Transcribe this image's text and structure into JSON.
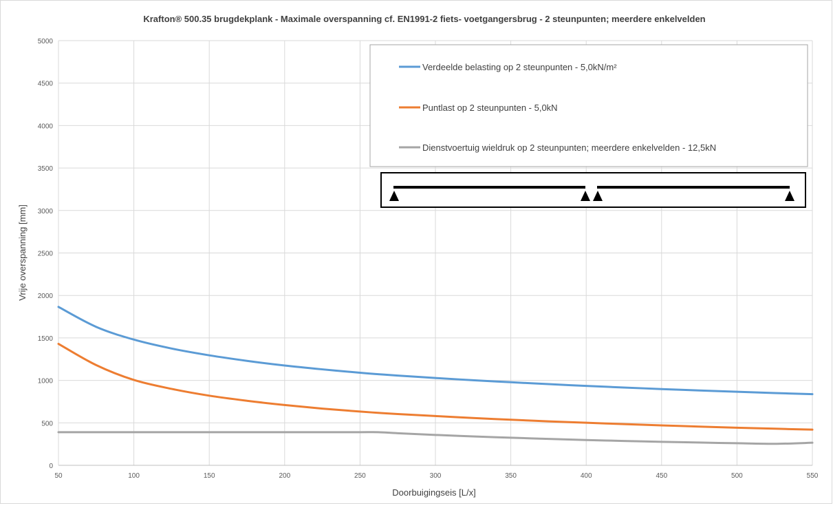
{
  "chart_data": {
    "type": "line",
    "title": "Krafton® 500.35 brugdekplank - Maximale overspanning cf. EN1991-2 fiets- voetgangersbrug - 2 steunpunten; meerdere enkelvelden",
    "xlabel": "Doorbuigingseis [L/x]",
    "ylabel": "Vrije overspanning [mm]",
    "xlim": [
      50,
      550
    ],
    "ylim": [
      0,
      5000
    ],
    "xticks": [
      "50",
      "100",
      "150",
      "200",
      "250",
      "300",
      "350",
      "400",
      "450",
      "500",
      "550"
    ],
    "yticks": [
      "0",
      "500",
      "1000",
      "1500",
      "2000",
      "2500",
      "3000",
      "3500",
      "4000",
      "4500",
      "5000"
    ],
    "grid": true,
    "legend_position": "top-right",
    "x": [
      50,
      75,
      100,
      125,
      150,
      175,
      200,
      225,
      250,
      262,
      275,
      300,
      325,
      350,
      375,
      400,
      425,
      450,
      475,
      500,
      525,
      550
    ],
    "series": [
      {
        "name": "Verdeelde belasting op 2 steunpunten - 5,0kN/m²",
        "color": "#5b9bd5",
        "values": [
          1865,
          1630,
          1480,
          1375,
          1295,
          1230,
          1175,
          1130,
          1090,
          1073,
          1057,
          1028,
          1002,
          978,
          956,
          935,
          916,
          898,
          881,
          866,
          851,
          838
        ]
      },
      {
        "name": "Puntlast op 2 steunpunten - 5,0kN",
        "color": "#ed7d31",
        "values": [
          1430,
          1180,
          1005,
          900,
          820,
          760,
          710,
          668,
          633,
          618,
          604,
          580,
          557,
          537,
          518,
          501,
          485,
          470,
          456,
          443,
          431,
          420
        ]
      },
      {
        "name": "Dienstvoertuig wieldruk op 2 steunpunten; meerdere enkelvelden - 12,5kN",
        "color": "#a5a5a5",
        "values": [
          390,
          390,
          390,
          390,
          390,
          390,
          390,
          390,
          390,
          390,
          378,
          358,
          340,
          325,
          311,
          298,
          287,
          277,
          268,
          260,
          253,
          266
        ]
      }
    ]
  }
}
